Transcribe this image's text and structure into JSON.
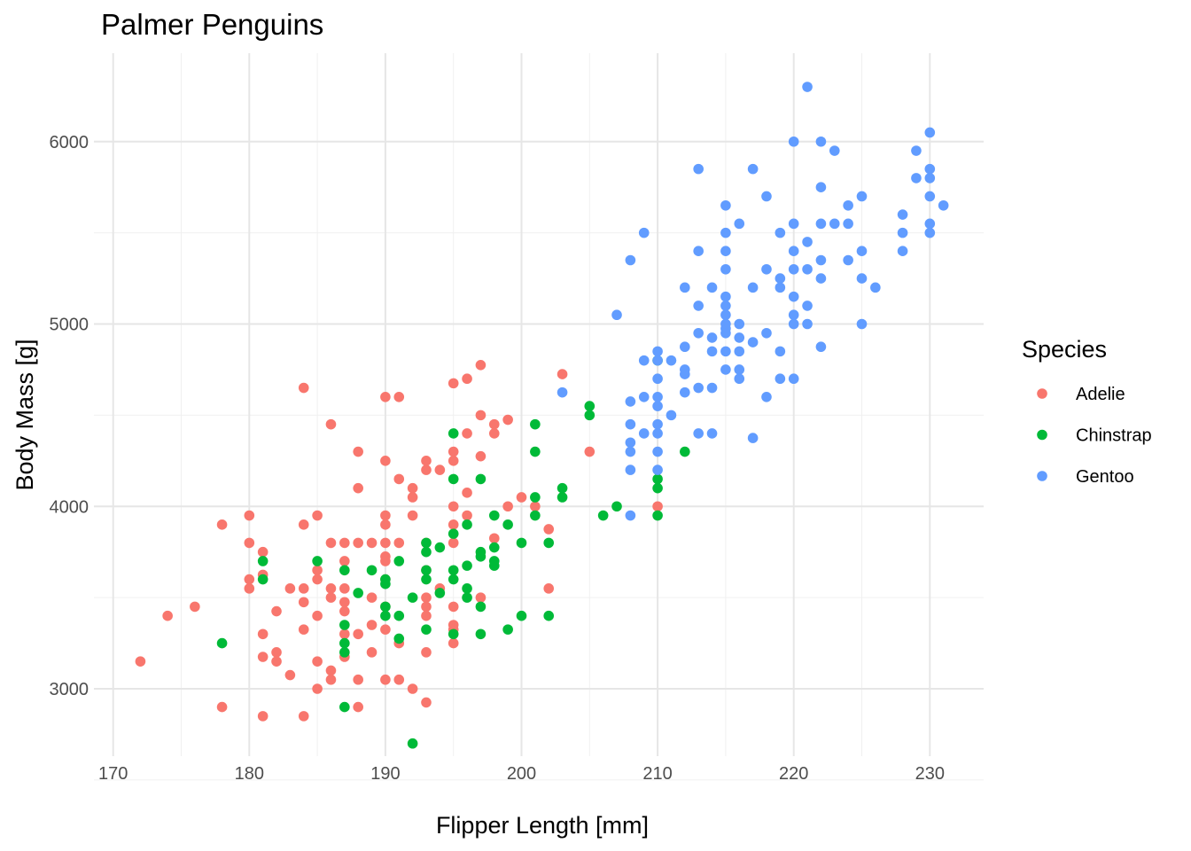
{
  "chart_data": {
    "type": "scatter",
    "title": "Palmer Penguins",
    "xlabel": "Flipper Length [mm]",
    "ylabel": "Body Mass [g]",
    "xlim": [
      170,
      234
    ],
    "ylim": [
      2550,
      6400
    ],
    "x_ticks": [
      170,
      180,
      190,
      200,
      210,
      220,
      230
    ],
    "y_ticks": [
      3000,
      4000,
      5000,
      6000
    ],
    "grid": true,
    "legend": {
      "title": "Species",
      "placement": "right"
    },
    "series": [
      {
        "name": "Adelie",
        "color": "#F8766D",
        "points": [
          [
            172,
            3150
          ],
          [
            174,
            3400
          ],
          [
            176,
            3450
          ],
          [
            178,
            3900
          ],
          [
            178,
            2900
          ],
          [
            180,
            3950
          ],
          [
            180,
            3800
          ],
          [
            180,
            3600
          ],
          [
            180,
            3550
          ],
          [
            181,
            3750
          ],
          [
            181,
            3625
          ],
          [
            181,
            3300
          ],
          [
            181,
            3175
          ],
          [
            181,
            2850
          ],
          [
            182,
            3425
          ],
          [
            182,
            3200
          ],
          [
            182,
            3150
          ],
          [
            183,
            3550
          ],
          [
            183,
            3075
          ],
          [
            184,
            4650
          ],
          [
            184,
            3900
          ],
          [
            184,
            3550
          ],
          [
            184,
            3475
          ],
          [
            184,
            3325
          ],
          [
            184,
            2850
          ],
          [
            185,
            3950
          ],
          [
            185,
            3650
          ],
          [
            185,
            3600
          ],
          [
            185,
            3400
          ],
          [
            185,
            3150
          ],
          [
            185,
            3000
          ],
          [
            186,
            4450
          ],
          [
            186,
            3800
          ],
          [
            186,
            3550
          ],
          [
            186,
            3500
          ],
          [
            186,
            3100
          ],
          [
            186,
            3050
          ],
          [
            187,
            3800
          ],
          [
            187,
            3700
          ],
          [
            187,
            3550
          ],
          [
            187,
            3475
          ],
          [
            187,
            3425
          ],
          [
            187,
            3300
          ],
          [
            187,
            3175
          ],
          [
            188,
            4300
          ],
          [
            188,
            4100
          ],
          [
            188,
            3800
          ],
          [
            188,
            3300
          ],
          [
            188,
            3050
          ],
          [
            188,
            2900
          ],
          [
            189,
            3800
          ],
          [
            189,
            3500
          ],
          [
            189,
            3350
          ],
          [
            189,
            3200
          ],
          [
            190,
            4600
          ],
          [
            190,
            4250
          ],
          [
            190,
            3950
          ],
          [
            190,
            3900
          ],
          [
            190,
            3800
          ],
          [
            190,
            3725
          ],
          [
            190,
            3700
          ],
          [
            190,
            3600
          ],
          [
            190,
            3450
          ],
          [
            190,
            3325
          ],
          [
            190,
            3050
          ],
          [
            191,
            4600
          ],
          [
            191,
            4150
          ],
          [
            191,
            3800
          ],
          [
            191,
            3250
          ],
          [
            191,
            3050
          ],
          [
            192,
            4100
          ],
          [
            192,
            4050
          ],
          [
            192,
            3950
          ],
          [
            192,
            3000
          ],
          [
            193,
            4250
          ],
          [
            193,
            4200
          ],
          [
            193,
            3800
          ],
          [
            193,
            3650
          ],
          [
            193,
            3500
          ],
          [
            193,
            3450
          ],
          [
            193,
            3400
          ],
          [
            193,
            3200
          ],
          [
            193,
            2925
          ],
          [
            194,
            4200
          ],
          [
            194,
            3550
          ],
          [
            195,
            4675
          ],
          [
            195,
            4300
          ],
          [
            195,
            4250
          ],
          [
            195,
            4000
          ],
          [
            195,
            3900
          ],
          [
            195,
            3800
          ],
          [
            195,
            3450
          ],
          [
            195,
            3350
          ],
          [
            195,
            3325
          ],
          [
            195,
            3250
          ],
          [
            196,
            4700
          ],
          [
            196,
            4400
          ],
          [
            196,
            4075
          ],
          [
            196,
            3950
          ],
          [
            197,
            4775
          ],
          [
            197,
            4500
          ],
          [
            197,
            4275
          ],
          [
            197,
            3500
          ],
          [
            198,
            4450
          ],
          [
            198,
            4400
          ],
          [
            198,
            3825
          ],
          [
            199,
            4475
          ],
          [
            199,
            4000
          ],
          [
            200,
            4050
          ],
          [
            201,
            4000
          ],
          [
            202,
            3875
          ],
          [
            202,
            3550
          ],
          [
            203,
            4725
          ],
          [
            205,
            4300
          ],
          [
            210,
            4000
          ]
        ]
      },
      {
        "name": "Chinstrap",
        "color": "#00BA38",
        "points": [
          [
            178,
            3250
          ],
          [
            181,
            3700
          ],
          [
            181,
            3600
          ],
          [
            185,
            3700
          ],
          [
            187,
            3650
          ],
          [
            187,
            3350
          ],
          [
            187,
            3250
          ],
          [
            187,
            3200
          ],
          [
            187,
            2900
          ],
          [
            188,
            3525
          ],
          [
            189,
            3650
          ],
          [
            190,
            3600
          ],
          [
            190,
            3575
          ],
          [
            190,
            3450
          ],
          [
            190,
            3400
          ],
          [
            191,
            3700
          ],
          [
            191,
            3400
          ],
          [
            191,
            3275
          ],
          [
            192,
            3500
          ],
          [
            192,
            2700
          ],
          [
            193,
            3800
          ],
          [
            193,
            3750
          ],
          [
            193,
            3650
          ],
          [
            193,
            3600
          ],
          [
            193,
            3325
          ],
          [
            194,
            3775
          ],
          [
            194,
            3525
          ],
          [
            195,
            4400
          ],
          [
            195,
            4150
          ],
          [
            195,
            3850
          ],
          [
            195,
            3650
          ],
          [
            195,
            3600
          ],
          [
            195,
            3300
          ],
          [
            196,
            3900
          ],
          [
            196,
            3675
          ],
          [
            196,
            3550
          ],
          [
            196,
            3500
          ],
          [
            197,
            4150
          ],
          [
            197,
            3750
          ],
          [
            197,
            3725
          ],
          [
            197,
            3450
          ],
          [
            197,
            3300
          ],
          [
            198,
            3950
          ],
          [
            198,
            3775
          ],
          [
            198,
            3700
          ],
          [
            198,
            3675
          ],
          [
            199,
            3900
          ],
          [
            199,
            3325
          ],
          [
            200,
            3800
          ],
          [
            200,
            3400
          ],
          [
            201,
            4450
          ],
          [
            201,
            4300
          ],
          [
            201,
            4050
          ],
          [
            201,
            3950
          ],
          [
            202,
            3800
          ],
          [
            202,
            3400
          ],
          [
            203,
            4100
          ],
          [
            203,
            4050
          ],
          [
            205,
            4550
          ],
          [
            205,
            4500
          ],
          [
            206,
            3950
          ],
          [
            207,
            4000
          ],
          [
            210,
            4800
          ],
          [
            210,
            4150
          ],
          [
            210,
            4100
          ],
          [
            210,
            3950
          ],
          [
            212,
            4300
          ]
        ]
      },
      {
        "name": "Gentoo",
        "color": "#619CFF",
        "points": [
          [
            203,
            4625
          ],
          [
            207,
            5050
          ],
          [
            208,
            5350
          ],
          [
            208,
            4575
          ],
          [
            208,
            4450
          ],
          [
            208,
            4350
          ],
          [
            208,
            4300
          ],
          [
            208,
            4200
          ],
          [
            208,
            3950
          ],
          [
            209,
            5500
          ],
          [
            209,
            4800
          ],
          [
            209,
            4600
          ],
          [
            209,
            4400
          ],
          [
            210,
            4850
          ],
          [
            210,
            4800
          ],
          [
            210,
            4700
          ],
          [
            210,
            4600
          ],
          [
            210,
            4550
          ],
          [
            210,
            4450
          ],
          [
            210,
            4400
          ],
          [
            210,
            4300
          ],
          [
            210,
            4200
          ],
          [
            211,
            4800
          ],
          [
            211,
            4500
          ],
          [
            212,
            5200
          ],
          [
            212,
            4875
          ],
          [
            212,
            4750
          ],
          [
            212,
            4725
          ],
          [
            212,
            4625
          ],
          [
            213,
            5850
          ],
          [
            213,
            5400
          ],
          [
            213,
            5100
          ],
          [
            213,
            4950
          ],
          [
            213,
            4650
          ],
          [
            213,
            4400
          ],
          [
            214,
            5200
          ],
          [
            214,
            4925
          ],
          [
            214,
            4850
          ],
          [
            214,
            4650
          ],
          [
            214,
            4400
          ],
          [
            215,
            5650
          ],
          [
            215,
            5500
          ],
          [
            215,
            5400
          ],
          [
            215,
            5300
          ],
          [
            215,
            5150
          ],
          [
            215,
            5100
          ],
          [
            215,
            5050
          ],
          [
            215,
            5000
          ],
          [
            215,
            4975
          ],
          [
            215,
            4950
          ],
          [
            215,
            4850
          ],
          [
            215,
            4750
          ],
          [
            216,
            5550
          ],
          [
            216,
            5000
          ],
          [
            216,
            4925
          ],
          [
            216,
            4850
          ],
          [
            216,
            4750
          ],
          [
            216,
            4700
          ],
          [
            217,
            5850
          ],
          [
            217,
            5200
          ],
          [
            217,
            4900
          ],
          [
            217,
            4375
          ],
          [
            218,
            5700
          ],
          [
            218,
            5300
          ],
          [
            218,
            4950
          ],
          [
            218,
            4600
          ],
          [
            219,
            5500
          ],
          [
            219,
            5250
          ],
          [
            219,
            5200
          ],
          [
            219,
            4850
          ],
          [
            219,
            4700
          ],
          [
            220,
            6000
          ],
          [
            220,
            5550
          ],
          [
            220,
            5400
          ],
          [
            220,
            5300
          ],
          [
            220,
            5150
          ],
          [
            220,
            5050
          ],
          [
            220,
            5000
          ],
          [
            220,
            4700
          ],
          [
            221,
            6300
          ],
          [
            221,
            5450
          ],
          [
            221,
            5300
          ],
          [
            221,
            5100
          ],
          [
            221,
            5000
          ],
          [
            222,
            6000
          ],
          [
            222,
            5750
          ],
          [
            222,
            5550
          ],
          [
            222,
            5350
          ],
          [
            222,
            5250
          ],
          [
            222,
            4875
          ],
          [
            223,
            5950
          ],
          [
            223,
            5550
          ],
          [
            224,
            5650
          ],
          [
            224,
            5550
          ],
          [
            224,
            5350
          ],
          [
            225,
            5700
          ],
          [
            225,
            5400
          ],
          [
            225,
            5250
          ],
          [
            225,
            5000
          ],
          [
            226,
            5200
          ],
          [
            228,
            5600
          ],
          [
            228,
            5500
          ],
          [
            228,
            5400
          ],
          [
            229,
            5950
          ],
          [
            229,
            5800
          ],
          [
            230,
            6050
          ],
          [
            230,
            5850
          ],
          [
            230,
            5800
          ],
          [
            230,
            5700
          ],
          [
            230,
            5550
          ],
          [
            230,
            5500
          ],
          [
            231,
            5650
          ]
        ]
      }
    ]
  }
}
